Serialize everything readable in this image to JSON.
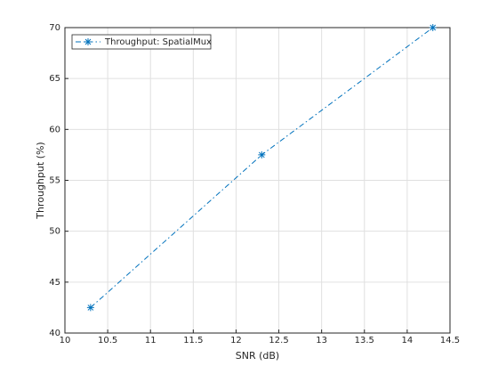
{
  "chart_data": {
    "type": "line",
    "x_label": "SNR (dB)",
    "y_label": "Throughput (%)",
    "x": [
      10.3,
      12.3,
      14.3
    ],
    "series": [
      {
        "name": "Throughput: SpatialMux",
        "color": "#0072bd",
        "values": [
          42.5,
          57.5,
          70
        ]
      }
    ],
    "xlim": [
      10,
      14.5
    ],
    "xticks": [
      10,
      10.5,
      11,
      11.5,
      12,
      12.5,
      13,
      13.5,
      14,
      14.5
    ],
    "ylim": [
      40,
      70
    ],
    "yticks": [
      40,
      45,
      50,
      55,
      60,
      65,
      70
    ],
    "grid": true,
    "legend": "top-left"
  }
}
